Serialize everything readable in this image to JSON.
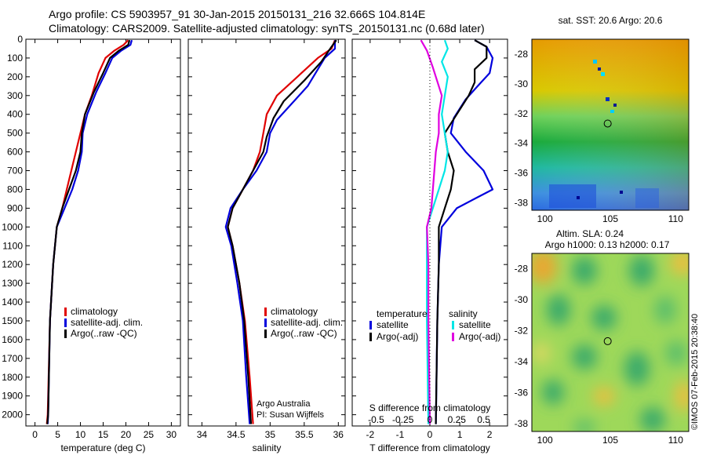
{
  "header": {
    "line1": "Argo profile: CS 5903957_91 30-Jan-2015 20150131_216 32.666S 104.814E",
    "line2": "Climatology: CARS2009. Satellite-adjusted climatology: synTS_20150131.nc (0.68d later)"
  },
  "watermark": "©IMOS 07-Feb-2015 20:38:40",
  "colors": {
    "red": "#e00000",
    "blue": "#0000dd",
    "black": "#000000",
    "cyan": "#00e6e6",
    "magenta": "#e000e0"
  },
  "chart_data": [
    {
      "type": "line",
      "xlabel": "temperature (deg C)",
      "ylabel": "",
      "xlim": [
        -2,
        32
      ],
      "ylim": [
        2060,
        0
      ],
      "xticks": [
        "0",
        "5",
        "10",
        "15",
        "20",
        "25",
        "30"
      ],
      "yticks": [
        "0",
        "100",
        "200",
        "300",
        "400",
        "500",
        "600",
        "700",
        "800",
        "900",
        "1000",
        "1100",
        "1200",
        "1300",
        "1400",
        "1500",
        "1600",
        "1700",
        "1800",
        "1900",
        "2000"
      ],
      "legend": [
        "climatology",
        "satellite-adj. clim.",
        "Argo(..raw -QC)"
      ],
      "series": [
        {
          "name": "climatology",
          "color": "red",
          "points": [
            [
              20.5,
              5
            ],
            [
              19.5,
              30
            ],
            [
              17.5,
              60
            ],
            [
              15.5,
              100
            ],
            [
              14,
              180
            ],
            [
              12.5,
              300
            ],
            [
              11,
              400
            ],
            [
              10,
              500
            ],
            [
              9,
              600
            ],
            [
              8,
              700
            ],
            [
              7,
              800
            ],
            [
              6,
              900
            ],
            [
              4.8,
              1000
            ],
            [
              4,
              1200
            ],
            [
              3.3,
              1500
            ],
            [
              2.8,
              2000
            ],
            [
              2.6,
              2050
            ]
          ]
        },
        {
          "name": "satellite-adj. clim.",
          "color": "blue",
          "points": [
            [
              21.3,
              5
            ],
            [
              21,
              30
            ],
            [
              19,
              60
            ],
            [
              17,
              100
            ],
            [
              15.5,
              180
            ],
            [
              13.5,
              280
            ],
            [
              11.5,
              400
            ],
            [
              10.5,
              500
            ],
            [
              10.3,
              600
            ],
            [
              9.5,
              700
            ],
            [
              8.2,
              800
            ],
            [
              6.5,
              900
            ],
            [
              4.8,
              1000
            ],
            [
              4,
              1200
            ],
            [
              3.3,
              1500
            ],
            [
              2.9,
              2000
            ],
            [
              2.8,
              2050
            ]
          ]
        },
        {
          "name": "Argo(..raw -QC)",
          "color": "black",
          "points": [
            [
              20.8,
              5
            ],
            [
              20.5,
              30
            ],
            [
              18.5,
              60
            ],
            [
              16.5,
              100
            ],
            [
              15,
              180
            ],
            [
              13,
              280
            ],
            [
              11,
              400
            ],
            [
              10.3,
              500
            ],
            [
              10,
              600
            ],
            [
              9,
              700
            ],
            [
              7.5,
              800
            ],
            [
              6,
              900
            ],
            [
              4.8,
              1000
            ],
            [
              4,
              1200
            ],
            [
              3.3,
              1500
            ],
            [
              2.9,
              2000
            ],
            [
              2.7,
              2050
            ]
          ]
        }
      ]
    },
    {
      "type": "line",
      "xlabel": "salinity",
      "ylabel": "",
      "xlim": [
        33.8,
        36.1
      ],
      "ylim": [
        2060,
        0
      ],
      "xticks": [
        "34",
        "34.5",
        "35",
        "35.5",
        "36"
      ],
      "legend": [
        "climatology",
        "satellite-adj. clim.",
        "Argo(..raw -QC)"
      ],
      "annotation": [
        "Argo Australia",
        "PI: Susan Wijffels"
      ],
      "series": [
        {
          "name": "climatology",
          "color": "red",
          "points": [
            [
              35.95,
              5
            ],
            [
              35.9,
              50
            ],
            [
              35.7,
              100
            ],
            [
              35.4,
              200
            ],
            [
              35.1,
              300
            ],
            [
              34.95,
              400
            ],
            [
              34.9,
              500
            ],
            [
              34.85,
              600
            ],
            [
              34.75,
              700
            ],
            [
              34.6,
              800
            ],
            [
              34.45,
              900
            ],
            [
              34.38,
              1000
            ],
            [
              34.45,
              1100
            ],
            [
              34.55,
              1300
            ],
            [
              34.63,
              1500
            ],
            [
              34.7,
              1800
            ],
            [
              34.75,
              2050
            ]
          ]
        },
        {
          "name": "satellite-adj. clim.",
          "color": "blue",
          "points": [
            [
              35.95,
              5
            ],
            [
              35.95,
              50
            ],
            [
              35.8,
              100
            ],
            [
              35.55,
              250
            ],
            [
              35.3,
              350
            ],
            [
              35.1,
              430
            ],
            [
              35,
              500
            ],
            [
              34.95,
              600
            ],
            [
              34.8,
              700
            ],
            [
              34.6,
              800
            ],
            [
              34.42,
              900
            ],
            [
              34.35,
              1000
            ],
            [
              34.43,
              1100
            ],
            [
              34.52,
              1300
            ],
            [
              34.6,
              1500
            ],
            [
              34.65,
              1800
            ],
            [
              34.7,
              2050
            ]
          ]
        },
        {
          "name": "Argo(..raw -QC)",
          "color": "black",
          "points": [
            [
              35.97,
              5
            ],
            [
              35.9,
              40
            ],
            [
              35.75,
              120
            ],
            [
              35.5,
              220
            ],
            [
              35.2,
              330
            ],
            [
              35.05,
              420
            ],
            [
              34.95,
              520
            ],
            [
              34.9,
              600
            ],
            [
              34.75,
              700
            ],
            [
              34.6,
              800
            ],
            [
              34.45,
              900
            ],
            [
              34.38,
              1000
            ],
            [
              34.45,
              1100
            ],
            [
              34.55,
              1300
            ],
            [
              34.62,
              1500
            ],
            [
              34.68,
              1800
            ],
            [
              34.72,
              2050
            ]
          ]
        }
      ]
    },
    {
      "type": "line",
      "xlabel": "T difference from climatology",
      "ylabel": "",
      "xlim": [
        -2.6,
        2.6
      ],
      "ylim": [
        2060,
        0
      ],
      "xticks": [
        "-2",
        "-1",
        "0",
        "1",
        "2"
      ],
      "top_label": "S difference from climatology",
      "top_ticks": [
        "-0.5",
        "-0.25",
        "0",
        "0.25",
        "0.5"
      ],
      "legend_groups": [
        {
          "title": "temperature",
          "items": [
            "satellite",
            "Argo(-adj)"
          ]
        },
        {
          "title": "salinity",
          "items": [
            "satellite",
            "Argo(-adj)"
          ]
        }
      ],
      "series": [
        {
          "name": "temperature satellite",
          "color": "blue",
          "points": [
            [
              1.5,
              5
            ],
            [
              1.9,
              40
            ],
            [
              2.1,
              100
            ],
            [
              2,
              180
            ],
            [
              1.6,
              250
            ],
            [
              1.2,
              320
            ],
            [
              0.8,
              420
            ],
            [
              0.7,
              500
            ],
            [
              1.2,
              600
            ],
            [
              1.8,
              700
            ],
            [
              2.1,
              800
            ],
            [
              1.5,
              850
            ],
            [
              0.9,
              900
            ],
            [
              0.4,
              1000
            ],
            [
              0.3,
              1200
            ],
            [
              0.25,
              1500
            ],
            [
              0.2,
              2050
            ]
          ]
        },
        {
          "name": "temperature Argo(-adj)",
          "color": "black",
          "points": [
            [
              1.5,
              5
            ],
            [
              1.9,
              40
            ],
            [
              1.9,
              100
            ],
            [
              1.5,
              160
            ],
            [
              1.5,
              230
            ],
            [
              1.3,
              300
            ],
            [
              0.9,
              400
            ],
            [
              0.5,
              500
            ],
            [
              0.6,
              600
            ],
            [
              0.8,
              700
            ],
            [
              0.7,
              800
            ],
            [
              0.5,
              900
            ],
            [
              0.3,
              1000
            ],
            [
              0.3,
              1200
            ],
            [
              0.25,
              1500
            ],
            [
              0.2,
              2050
            ]
          ]
        },
        {
          "name": "salinity satellite",
          "color": "cyan",
          "points": [
            [
              0.5,
              5
            ],
            [
              0.6,
              50
            ],
            [
              0.4,
              120
            ],
            [
              0.6,
              200
            ],
            [
              0.5,
              300
            ],
            [
              0.4,
              400
            ],
            [
              0.5,
              500
            ],
            [
              0.6,
              600
            ],
            [
              0.5,
              700
            ],
            [
              0.3,
              800
            ],
            [
              0.1,
              900
            ],
            [
              -0.1,
              1000
            ],
            [
              -0.1,
              1200
            ],
            [
              -0.1,
              1500
            ],
            [
              -0.05,
              2050
            ]
          ]
        },
        {
          "name": "salinity Argo(-adj)",
          "color": "magenta",
          "points": [
            [
              -0.3,
              5
            ],
            [
              -0.1,
              60
            ],
            [
              0.1,
              150
            ],
            [
              0.4,
              300
            ],
            [
              0.3,
              400
            ],
            [
              0.3,
              500
            ],
            [
              0.2,
              600
            ],
            [
              0.15,
              700
            ],
            [
              0.1,
              800
            ],
            [
              0.05,
              900
            ],
            [
              -0.1,
              1000
            ],
            [
              -0.05,
              1200
            ],
            [
              -0.05,
              1500
            ],
            [
              0,
              2050
            ]
          ]
        }
      ]
    },
    {
      "type": "heatmap",
      "title": "sat. SST: 20.6  Argo: 20.6",
      "xlim": [
        99,
        111
      ],
      "ylim": [
        -38.5,
        -27
      ],
      "xticks": [
        "100",
        "105",
        "110"
      ],
      "yticks": [
        "-28",
        "-30",
        "-32",
        "-34",
        "-36",
        "-38"
      ],
      "marker": [
        104.8,
        -32.67
      ]
    },
    {
      "type": "heatmap",
      "title": "Altim. SLA: 0.24",
      "subtitle": "Argo h1000: 0.13 h2000: 0.17",
      "xlim": [
        99,
        111
      ],
      "ylim": [
        -38.5,
        -27
      ],
      "xticks": [
        "100",
        "105",
        "110"
      ],
      "yticks": [
        "-28",
        "-30",
        "-32",
        "-34",
        "-36",
        "-38"
      ],
      "marker": [
        104.8,
        -32.67
      ]
    }
  ]
}
